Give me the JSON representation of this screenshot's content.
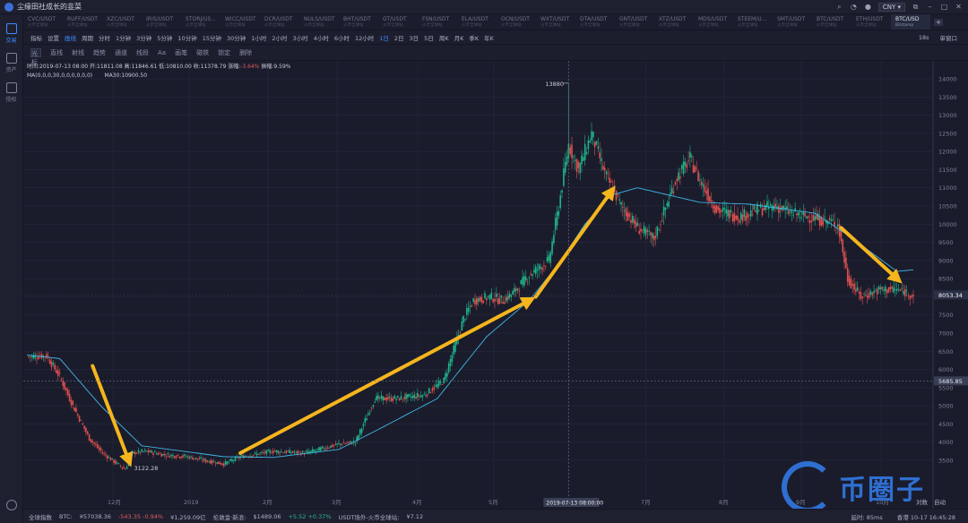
{
  "window": {
    "title": "尘缘田社成长的韭菜",
    "currency": "CNY"
  },
  "sidebar": {
    "items": [
      {
        "label": "交易",
        "active": true
      },
      {
        "label": "资产",
        "active": false
      },
      {
        "label": "授权",
        "active": false
      }
    ]
  },
  "pairs": [
    {
      "name": "CVC/USDT",
      "sub": "火币全球站"
    },
    {
      "name": "RUFF/USDT",
      "sub": "火币全球站"
    },
    {
      "name": "XZC/USDT",
      "sub": "火币全球站"
    },
    {
      "name": "IRIS/USDT",
      "sub": "火币全球站"
    },
    {
      "name": "STORJ/US...",
      "sub": "火币全球站"
    },
    {
      "name": "WICC/USDT",
      "sub": "火币全球站"
    },
    {
      "name": "DCR/USDT",
      "sub": "火币全球站"
    },
    {
      "name": "NULS/USDT",
      "sub": "火币全球站"
    },
    {
      "name": "BHT/USDT",
      "sub": "火币全球站"
    },
    {
      "name": "GT/USDT",
      "sub": "火币全球站"
    },
    {
      "name": "FSN/USDT",
      "sub": "火币全球站"
    },
    {
      "name": "ELA/USDT",
      "sub": "火币全球站"
    },
    {
      "name": "OCN/USDT",
      "sub": "火币全球站"
    },
    {
      "name": "WXT/USDT",
      "sub": "火币全球站"
    },
    {
      "name": "DTA/USDT",
      "sub": "火币全球站"
    },
    {
      "name": "GNT/USDT",
      "sub": "火币全球站"
    },
    {
      "name": "XTZ/USDT",
      "sub": "火币全球站"
    },
    {
      "name": "MDS/USDT",
      "sub": "火币全球站"
    },
    {
      "name": "STEEM/U...",
      "sub": "火币全球站"
    },
    {
      "name": "SMT/USDT",
      "sub": "火币全球站"
    },
    {
      "name": "BTC/USDT",
      "sub": "火币全球站"
    },
    {
      "name": "ETH/USDT",
      "sub": "火币全球站"
    },
    {
      "name": "BTC/USD",
      "sub": "Bitstamp",
      "active": true
    }
  ],
  "toolbar": {
    "items": [
      "指标",
      "设置",
      "画线",
      "周期",
      "分时",
      "1分钟",
      "3分钟",
      "5分钟",
      "10分钟",
      "15分钟",
      "30分钟",
      "1小时",
      "2小时",
      "3小时",
      "4小时",
      "6小时",
      "12小时",
      "1日",
      "2日",
      "3日",
      "5日",
      "周K",
      "月K",
      "季K",
      "年K"
    ],
    "active": [
      "画线",
      "1日"
    ],
    "right": [
      "18s",
      "单窗口"
    ]
  },
  "draw_tools": [
    "光标",
    "直线",
    "射线",
    "趋势",
    "通道",
    "线段",
    "Aa",
    "画笔",
    "磁铁",
    "锁定",
    "删除"
  ],
  "info": {
    "line1": "时间:2019-07-13 08:00  开:11811.08  高:11846.61  低:10810.00  收:11378.79  涨幅:",
    "change": "-3.64%",
    "line1b": "  振幅:9.59%",
    "line2": "MA(0,0,0,30,0,0,0,0,0,0)",
    "ma30": "MA30:10900.50"
  },
  "chart_data": {
    "type": "candlestick",
    "xlabels": [
      "12月",
      "2019",
      "2月",
      "3月",
      "4月",
      "5月",
      "6月",
      "7月",
      "8月",
      "9月",
      "10月"
    ],
    "ylabels": [
      14000,
      13500,
      13000,
      12500,
      12000,
      11500,
      11000,
      10500,
      10000,
      9500,
      9000,
      8500,
      8000,
      7500,
      7000,
      6500,
      6000,
      5500,
      5000,
      4500,
      4000,
      3500
    ],
    "ylim": [
      3200,
      14300
    ],
    "high_label": "13880",
    "low_label": "3122.28",
    "last_price": "8053.34",
    "crosshair_price": "5685.85",
    "crosshair_time": "2019-07-13 08:00:00",
    "close_anchors": [
      [
        0,
        6350
      ],
      [
        12,
        6380
      ],
      [
        20,
        5800
      ],
      [
        28,
        5000
      ],
      [
        38,
        4100
      ],
      [
        46,
        3700
      ],
      [
        55,
        3400
      ],
      [
        60,
        3250
      ],
      [
        64,
        3700
      ],
      [
        72,
        3750
      ],
      [
        84,
        3650
      ],
      [
        98,
        3600
      ],
      [
        110,
        3480
      ],
      [
        120,
        3400
      ],
      [
        130,
        3600
      ],
      [
        150,
        3750
      ],
      [
        170,
        3700
      ],
      [
        190,
        3950
      ],
      [
        200,
        4000
      ],
      [
        212,
        5200
      ],
      [
        226,
        5200
      ],
      [
        242,
        5300
      ],
      [
        254,
        5700
      ],
      [
        266,
        7400
      ],
      [
        272,
        7900
      ],
      [
        282,
        8000
      ],
      [
        290,
        7900
      ],
      [
        296,
        8100
      ],
      [
        306,
        8600
      ],
      [
        318,
        9000
      ],
      [
        324,
        10500
      ],
      [
        330,
        12200
      ],
      [
        336,
        11500
      ],
      [
        344,
        12500
      ],
      [
        352,
        11400
      ],
      [
        362,
        10500
      ],
      [
        372,
        9900
      ],
      [
        382,
        9600
      ],
      [
        396,
        11300
      ],
      [
        404,
        11800
      ],
      [
        410,
        11200
      ],
      [
        420,
        10400
      ],
      [
        434,
        10200
      ],
      [
        446,
        10400
      ],
      [
        456,
        10500
      ],
      [
        466,
        10300
      ],
      [
        476,
        10200
      ],
      [
        486,
        10100
      ],
      [
        494,
        10000
      ],
      [
        500,
        8500
      ],
      [
        508,
        8000
      ],
      [
        520,
        8200
      ],
      [
        530,
        8200
      ],
      [
        540,
        8050
      ]
    ],
    "ma30_anchors": [
      [
        0,
        6400
      ],
      [
        20,
        6300
      ],
      [
        45,
        5000
      ],
      [
        70,
        3900
      ],
      [
        120,
        3600
      ],
      [
        150,
        3580
      ],
      [
        190,
        3800
      ],
      [
        212,
        4300
      ],
      [
        250,
        5200
      ],
      [
        280,
        6900
      ],
      [
        306,
        7900
      ],
      [
        324,
        8900
      ],
      [
        340,
        10000
      ],
      [
        356,
        10800
      ],
      [
        372,
        11000
      ],
      [
        410,
        10600
      ],
      [
        440,
        10550
      ],
      [
        480,
        10300
      ],
      [
        500,
        9700
      ],
      [
        530,
        8700
      ]
    ],
    "volume_series": "none",
    "annotations": [
      {
        "type": "arrow",
        "from": [
          40,
          6100
        ],
        "to": [
          62,
          3500
        ]
      },
      {
        "type": "arrow",
        "from": [
          130,
          3700
        ],
        "to": [
          306,
          7900
        ]
      },
      {
        "type": "arrow",
        "from": [
          310,
          8000
        ],
        "to": [
          356,
          10900
        ]
      },
      {
        "type": "arrow",
        "from": [
          496,
          9900
        ],
        "to": [
          530,
          8500
        ]
      }
    ],
    "colors": {
      "up": "#1fb48a",
      "down": "#e0504f",
      "ma": "#42b6e6",
      "arrow": "#f5b51d",
      "grid": "#262a3c",
      "bg": "#1a1c2c"
    }
  },
  "statusbar": {
    "market": "全球指数",
    "btc_label": "BTC:",
    "btc_price": "¥57038.36",
    "btc_change": "-543.35 -0.94%",
    "btc_vol": "¥1,259.09亿",
    "gold_label": "伦敦金·新浪:",
    "gold_price": "$1489.06",
    "gold_change": "+5.52 +0.37%",
    "usdt_label": "USDT场外-火币全球站:",
    "usdt_price": "¥7.12",
    "ping": "延时: 85ms",
    "time": "香港 10-17 16:45:28"
  },
  "watermark": {
    "text": "币圈子"
  },
  "chart_buttons": [
    "对数",
    "自动"
  ]
}
